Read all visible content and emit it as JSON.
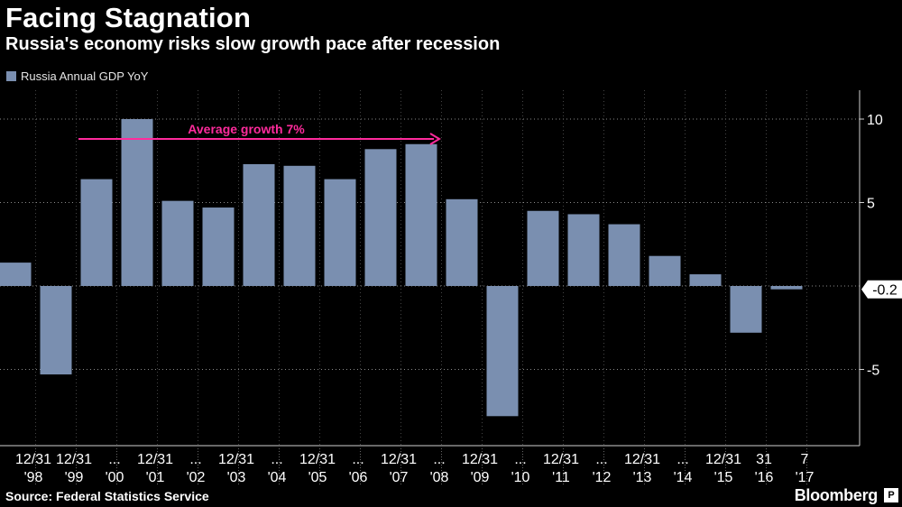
{
  "header": {
    "title": "Facing Stagnation",
    "subtitle": "Russia's economy risks slow growth pace after recession"
  },
  "footer": {
    "source": "Source: Federal Statistics Service",
    "brand": "Bloomberg",
    "brand_icon": "P"
  },
  "colors": {
    "bar": "#7a8fb0",
    "annotation": "#ff2b9c",
    "grid": "#8a8a8a",
    "background": "#000000"
  },
  "chart_data": {
    "type": "bar",
    "title": "Facing Stagnation",
    "subtitle": "Russia's economy risks slow growth pace after recession",
    "xlabel": "",
    "ylabel": "",
    "ylim": [
      -9.5,
      11.5
    ],
    "yticks": [
      10,
      5,
      -5
    ],
    "grid": true,
    "legend": "top-left",
    "series": [
      {
        "name": "Russia Annual GDP YoY",
        "values": [
          1.4,
          -5.3,
          6.4,
          10.0,
          5.1,
          4.7,
          7.3,
          7.2,
          6.4,
          8.2,
          8.5,
          5.2,
          -7.8,
          4.5,
          4.3,
          3.7,
          1.8,
          0.7,
          -2.8,
          -0.2
        ]
      }
    ],
    "categories": [
      "'98",
      "'99",
      "'00",
      "'01",
      "'02",
      "'03",
      "'04",
      "'05",
      "'06",
      "'07",
      "'08",
      "'09",
      "'10",
      "'11",
      "'12",
      "'13",
      "'14",
      "'15",
      "'16",
      "'17"
    ],
    "x_tick_top": [
      "12/31",
      "12/31",
      "...",
      "12/31",
      "...",
      "12/31",
      "...",
      "12/31",
      "...",
      "12/31",
      "...",
      "12/31",
      "...",
      "12/31",
      "...",
      "12/31",
      "...",
      "12/31",
      "31",
      "7"
    ],
    "x_tick_bottom": [
      "'98",
      "'99",
      "'00",
      "'01",
      "'02",
      "'03",
      "'04",
      "'05",
      "'06",
      "'07",
      "'08",
      "'09",
      "'10",
      "'11",
      "'12",
      "'13",
      "'14",
      "'15",
      "'16",
      "'17"
    ],
    "last_value_label": "-0.2",
    "annotations": [
      {
        "text": "Average growth 7%",
        "x_start": "'00",
        "x_end": "'08",
        "y": 8.8
      }
    ]
  }
}
